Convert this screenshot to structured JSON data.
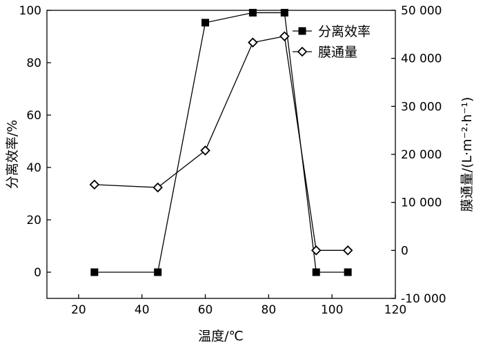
{
  "chart_data": {
    "type": "line",
    "xlabel": "温度/℃",
    "ylabel_left": "分离效率/%",
    "ylabel_right": "膜通量/(L·m⁻²·h⁻¹)",
    "xlim": [
      10,
      120
    ],
    "ylim_left": [
      -10,
      100
    ],
    "ylim_right": [
      -10000,
      50000
    ],
    "x_ticks": [
      20,
      40,
      60,
      80,
      100,
      120
    ],
    "x_tick_labels": [
      "20",
      "40",
      "60",
      "80",
      "100",
      "120"
    ],
    "y_left_ticks": [
      0,
      20,
      40,
      60,
      80,
      100
    ],
    "y_left_tick_labels": [
      "0",
      "20",
      "40",
      "60",
      "80",
      "100"
    ],
    "y_right_ticks": [
      -10000,
      0,
      10000,
      20000,
      30000,
      40000,
      50000
    ],
    "y_right_tick_labels": [
      "-10 000",
      "0",
      "10 000",
      "20 000",
      "30 000",
      "40 000",
      "50 000"
    ],
    "grid": false,
    "legend_position": "top-right",
    "series": [
      {
        "name": "分离效率",
        "axis": "left",
        "marker": "filled-square",
        "color": "#000000",
        "x": [
          25,
          45,
          60,
          75,
          85,
          95,
          105
        ],
        "y": [
          0,
          0,
          95.3,
          99.1,
          99.1,
          0,
          0
        ]
      },
      {
        "name": "膜通量",
        "axis": "right",
        "marker": "open-diamond",
        "color": "#000000",
        "x": [
          25,
          45,
          60,
          75,
          85,
          95,
          105
        ],
        "y": [
          13700,
          13100,
          20800,
          43300,
          44600,
          0,
          0
        ]
      }
    ]
  }
}
